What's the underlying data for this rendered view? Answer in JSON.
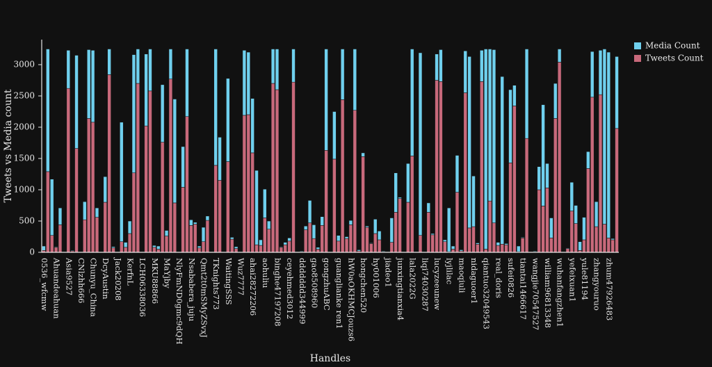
{
  "chart_data": {
    "type": "stacked_bar",
    "x_label": "Handles",
    "y_label": "Tweets vs Media count",
    "categories": [
      "0536_wfcmw",
      null,
      null,
      "Ahuandeahuan",
      null,
      null,
      "Asia9527",
      null,
      null,
      "CNlzhh666",
      null,
      null,
      "Chunyu_China",
      null,
      null,
      "DcyAustin",
      null,
      null,
      "Jack20208",
      null,
      null,
      "KerfnL",
      null,
      null,
      "LCH06338036",
      null,
      null,
      "MKU88866",
      null,
      null,
      "MaYjby",
      null,
      null,
      "NlyFmND0gmc9dQH",
      null,
      null,
      "Nsababera_juju",
      null,
      null,
      "Qmt2t0mSMyZSvxJ",
      null,
      null,
      "TKnights773",
      null,
      null,
      "WaitingSSS",
      null,
      null,
      "Wuz7777",
      null,
      null,
      "ahai28272206",
      null,
      null,
      "aohuliu",
      null,
      null,
      "binghe47197208",
      null,
      null,
      "ceyehmed3012",
      null,
      null,
      "ddddddd344999",
      null,
      null,
      "gao8508960",
      null,
      null,
      "gongzhuABC",
      null,
      null,
      "guanglianke ren1",
      null,
      null,
      "hW0aOKHMCJouzs6",
      null,
      null,
      "hongchen520",
      null,
      null,
      "hy001006",
      null,
      null,
      "jiadeo1",
      null,
      null,
      "junxingtianxia4",
      null,
      null,
      "lala2022G",
      null,
      null,
      "liqi74030287",
      null,
      null,
      "lucyzeeunew",
      null,
      null,
      "lyjlilac",
      null,
      null,
      "maoqiuli",
      null,
      null,
      "nidaguoer1",
      null,
      null,
      "qiantuo32049543",
      null,
      null,
      "real_doris",
      null,
      null,
      "sufei0826",
      null,
      null,
      "tiantai1466617",
      null,
      null,
      "wangjie70547527",
      null,
      null,
      "william96813348",
      null,
      null,
      "wuhanfangzhen1",
      null,
      null,
      "yefeixuan1",
      null,
      null,
      "yule81194",
      null,
      null,
      "zhangyouruo",
      null,
      null,
      "zhum47926483",
      null,
      null
    ],
    "series": [
      {
        "name": "Media Count",
        "color": "#6fd0ee",
        "values": [
          70,
          1960,
          900,
          10,
          270,
          5,
          610,
          10,
          1490,
          5,
          290,
          1100,
          1150,
          150,
          5,
          410,
          410,
          20,
          5,
          1910,
          80,
          200,
          1890,
          550,
          5,
          1150,
          670,
          30,
          50,
          920,
          90,
          480,
          1660,
          5,
          650,
          1080,
          90,
          30,
          30,
          230,
          70,
          5,
          1860,
          690,
          5,
          1330,
          30,
          30,
          5,
          1040,
          1000,
          870,
          1190,
          90,
          460,
          130,
          550,
          650,
          10,
          40,
          50,
          530,
          5,
          10,
          60,
          360,
          220,
          30,
          140,
          1620,
          5,
          760,
          90,
          810,
          30,
          70,
          980,
          20,
          60,
          20,
          10,
          230,
          140,
          10,
          5,
          390,
          630,
          20,
          5,
          620,
          1710,
          5,
          2920,
          5,
          150,
          20,
          420,
          510,
          30,
          700,
          50,
          590,
          20,
          670,
          2740,
          810,
          20,
          500,
          3200,
          2430,
          2770,
          50,
          2680,
          20,
          1170,
          330,
          90,
          10,
          1430,
          5,
          10,
          370,
          1620,
          390,
          320,
          560,
          210,
          5,
          10,
          460,
          290,
          140,
          360,
          270,
          730,
          400,
          710,
          2800,
          2970,
          20,
          1150
        ]
      },
      {
        "name": "Tweets Count",
        "color": "#c8697b",
        "values": [
          30,
          1290,
          270,
          80,
          440,
          5,
          2620,
          20,
          1660,
          5,
          520,
          2140,
          2080,
          560,
          5,
          800,
          2840,
          70,
          5,
          170,
          80,
          300,
          1270,
          2700,
          5,
          2020,
          2580,
          80,
          50,
          1760,
          260,
          2770,
          790,
          5,
          1040,
          2170,
          430,
          450,
          70,
          170,
          510,
          5,
          1390,
          1150,
          5,
          1450,
          210,
          60,
          5,
          2190,
          2200,
          1590,
          120,
          110,
          550,
          370,
          2700,
          2600,
          80,
          120,
          180,
          2720,
          5,
          10,
          360,
          470,
          220,
          50,
          430,
          1630,
          5,
          1490,
          180,
          2440,
          220,
          440,
          2270,
          20,
          1530,
          400,
          140,
          300,
          200,
          10,
          5,
          160,
          640,
          860,
          5,
          800,
          1540,
          5,
          270,
          5,
          640,
          280,
          2750,
          2730,
          170,
          10,
          50,
          960,
          20,
          2550,
          390,
          410,
          130,
          2730,
          50,
          820,
          470,
          110,
          130,
          120,
          1430,
          2340,
          10,
          230,
          1820,
          5,
          10,
          1000,
          740,
          1030,
          230,
          2140,
          3040,
          5,
          60,
          660,
          460,
          30,
          200,
          1340,
          2480,
          410,
          2520,
          450,
          230,
          200,
          1980
        ]
      }
    ],
    "ylim": [
      0,
      3400
    ],
    "yticks": [
      0,
      500,
      1000,
      1500,
      2000,
      2500,
      3000
    ],
    "grid": false,
    "legend": "right"
  }
}
